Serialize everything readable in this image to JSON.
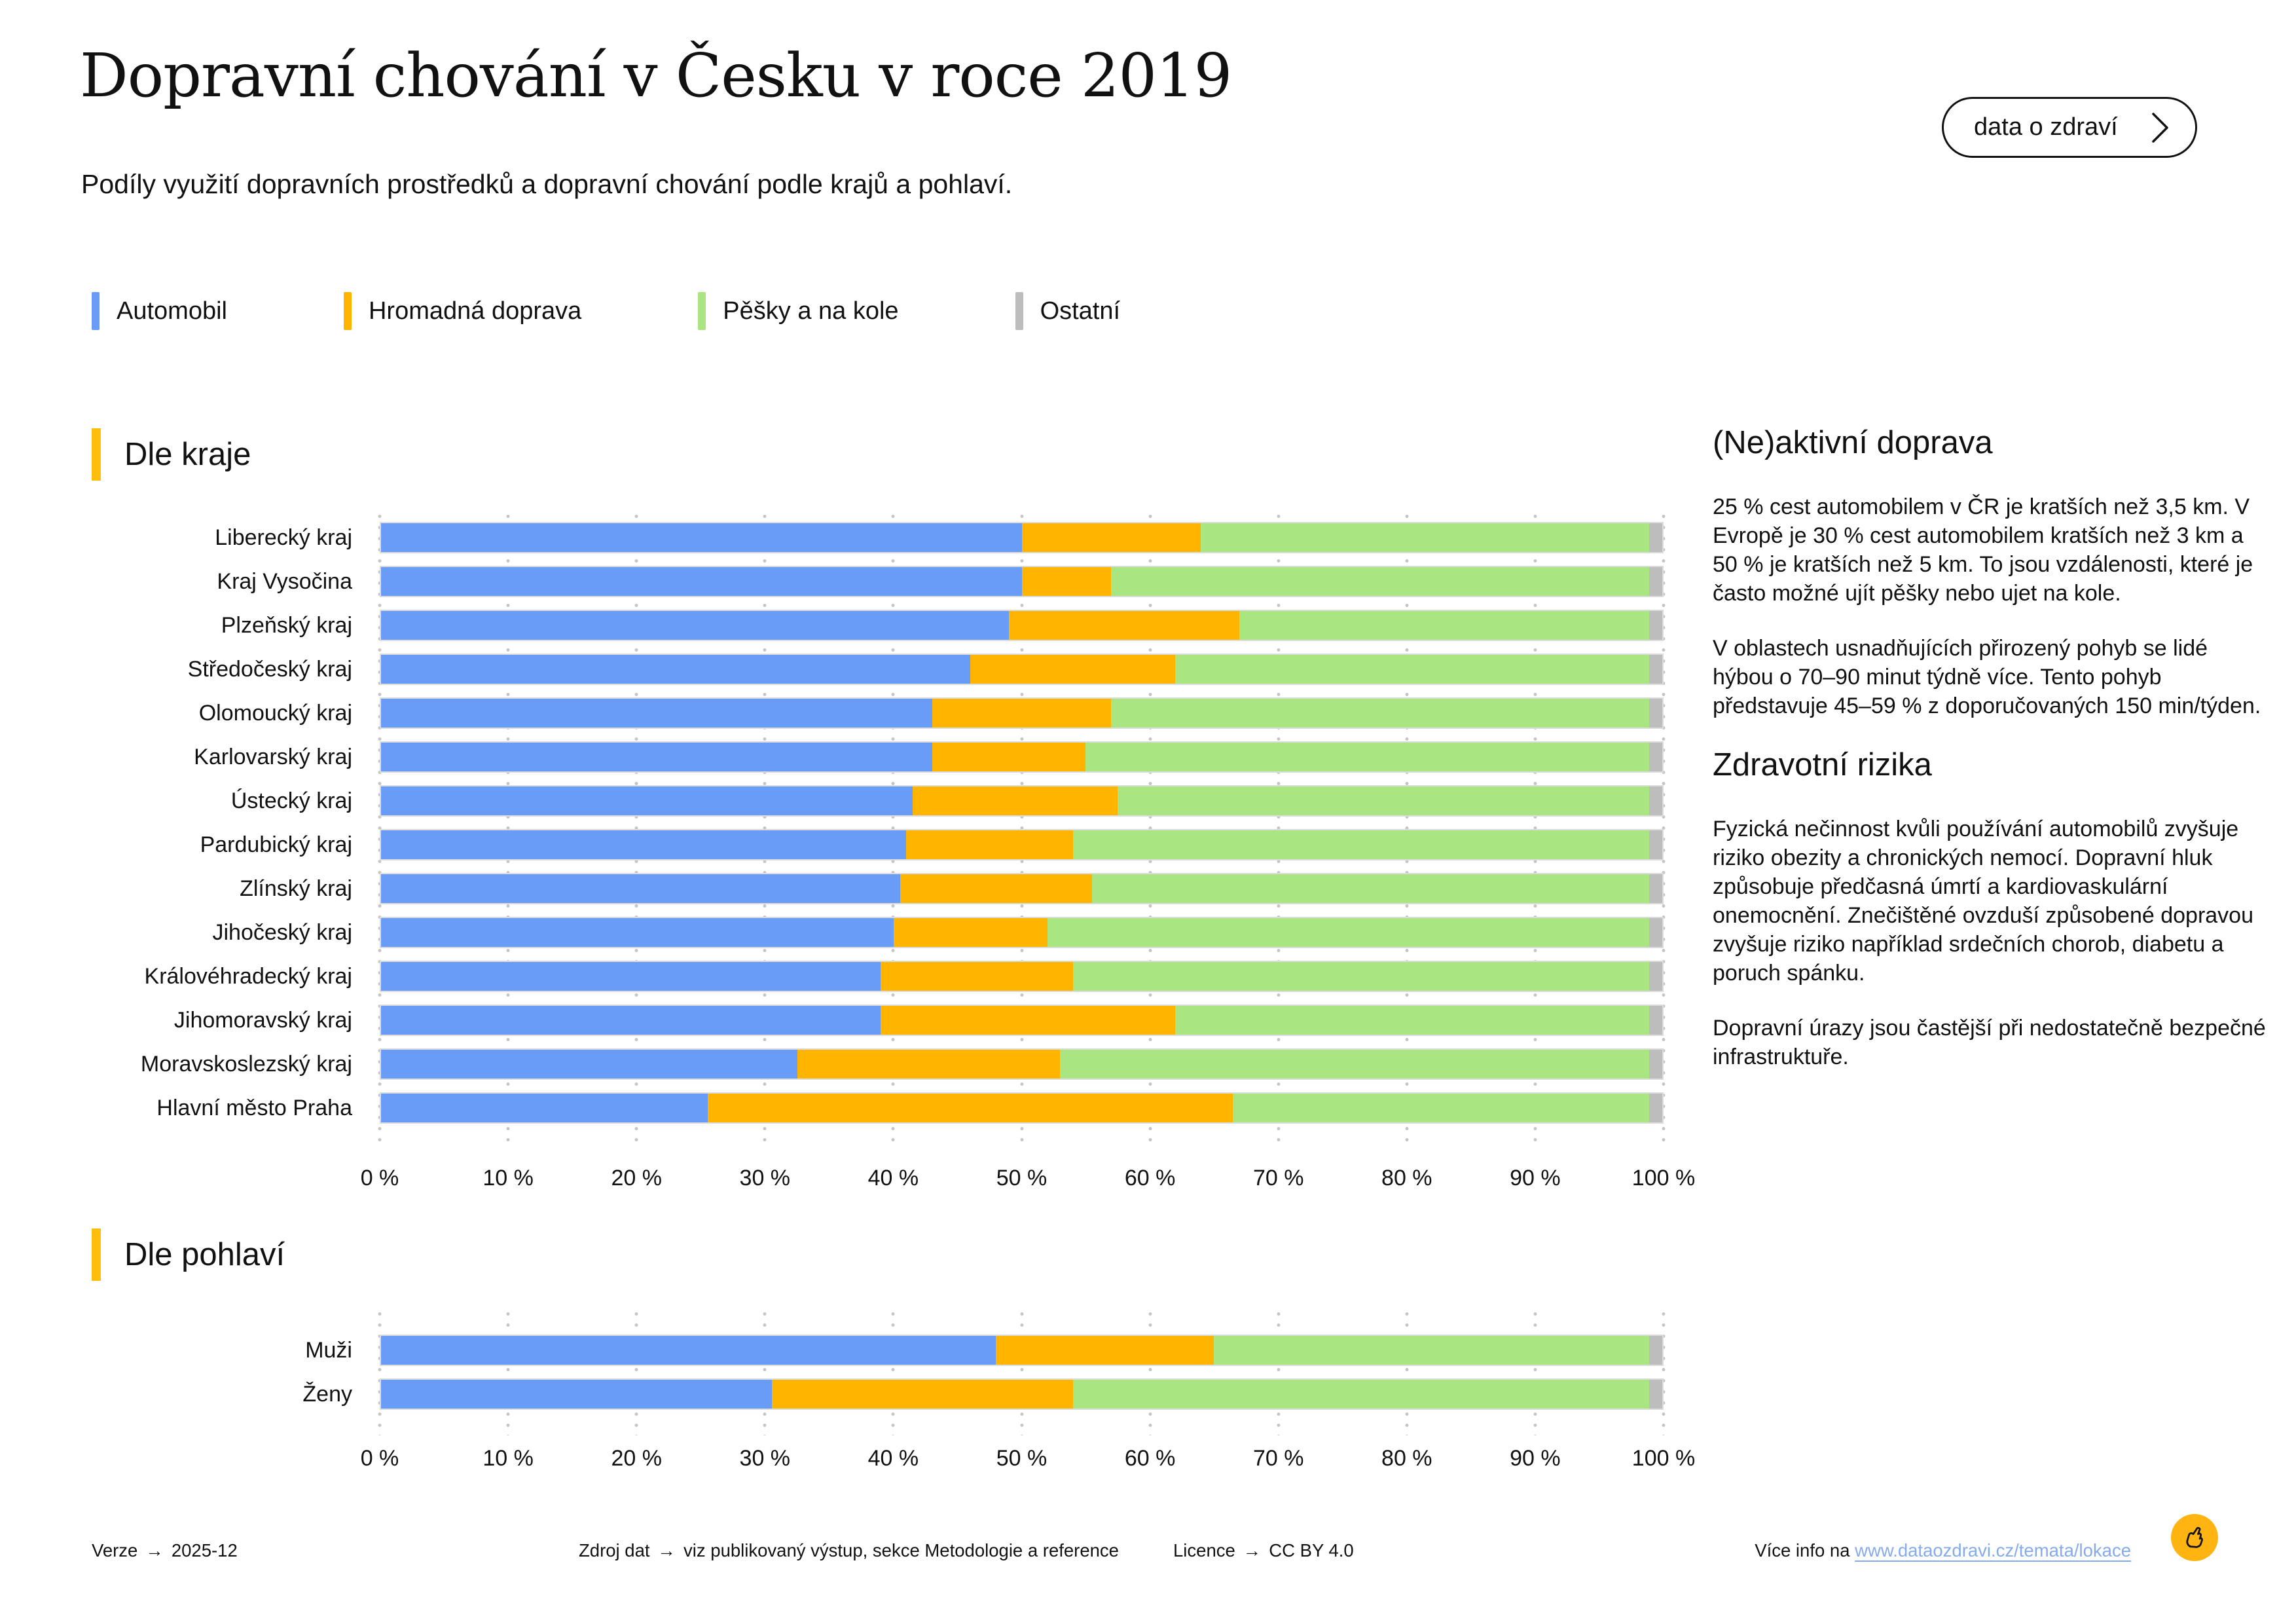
{
  "header": {
    "title": "Dopravní chování v Česku v roce 2019",
    "subtitle": "Podíly využití dopravních prostředků a dopravní chování podle krajů a pohlaví.",
    "cta_label": "data o zdraví"
  },
  "legend": [
    {
      "label": "Automobil",
      "color": "#699CF6"
    },
    {
      "label": "Hromadná doprava",
      "color": "#FFB400"
    },
    {
      "label": "Pěšky a na kole",
      "color": "#A9E581"
    },
    {
      "label": "Ostatní",
      "color": "#BDBDBD"
    }
  ],
  "chart_data": [
    {
      "type": "bar",
      "stacked": true,
      "orientation": "horizontal",
      "title": "Dle kraje",
      "unit": "%",
      "xlim": [
        0,
        100
      ],
      "grid": true,
      "x_ticks": [
        "0 %",
        "10 %",
        "20 %",
        "30 %",
        "40 %",
        "50 %",
        "60 %",
        "70 %",
        "80 %",
        "90 %",
        "100 %"
      ],
      "categories": [
        "Liberecký kraj",
        "Kraj Vysočina",
        "Plzeňský kraj",
        "Středočeský kraj",
        "Olomoucký kraj",
        "Karlovarský kraj",
        "Ústecký kraj",
        "Pardubický kraj",
        "Zlínský kraj",
        "Jihočeský kraj",
        "Královéhradecký kraj",
        "Jihomoravský kraj",
        "Moravskoslezský kraj",
        "Hlavní město Praha"
      ],
      "series": [
        {
          "name": "Automobil",
          "values": [
            50,
            50,
            49,
            46,
            43,
            43,
            41.5,
            41,
            40.5,
            40,
            39,
            39,
            32.5,
            25.5
          ]
        },
        {
          "name": "Hromadná doprava",
          "values": [
            14,
            7,
            18,
            16,
            14,
            12,
            16,
            13,
            15,
            12,
            15,
            23,
            20.5,
            41
          ]
        },
        {
          "name": "Pěšky a na kole",
          "values": [
            35,
            42,
            32,
            37,
            42,
            44,
            41.5,
            45,
            43.5,
            47,
            45,
            37,
            46,
            32.5
          ]
        },
        {
          "name": "Ostatní",
          "values": [
            1,
            1,
            1,
            1,
            1,
            1,
            1,
            1,
            1,
            1,
            1,
            1,
            1,
            1
          ]
        }
      ]
    },
    {
      "type": "bar",
      "stacked": true,
      "orientation": "horizontal",
      "title": "Dle pohlaví",
      "unit": "%",
      "xlim": [
        0,
        100
      ],
      "grid": true,
      "x_ticks": [
        "0 %",
        "10 %",
        "20 %",
        "30 %",
        "40 %",
        "50 %",
        "60 %",
        "70 %",
        "80 %",
        "90 %",
        "100 %"
      ],
      "categories": [
        "Muži",
        "Ženy"
      ],
      "series": [
        {
          "name": "Automobil",
          "values": [
            48,
            30.5
          ]
        },
        {
          "name": "Hromadná doprava",
          "values": [
            17,
            23.5
          ]
        },
        {
          "name": "Pěšky a na kole",
          "values": [
            34,
            45
          ]
        },
        {
          "name": "Ostatní",
          "values": [
            1,
            1
          ]
        }
      ]
    }
  ],
  "sidebar": {
    "sections": [
      {
        "heading": "(Ne)aktivní doprava",
        "paragraphs": [
          "25 % cest automobilem v ČR je kratších než 3,5 km. V Evropě je 30 % cest automobilem kratších než 3 km a 50 % je kratších než 5 km. To jsou vzdálenosti, které je často možné ujít pěšky nebo ujet na kole.",
          "V oblastech usnadňujících přirozený pohyb se lidé hýbou o 70–90 minut týdně více. Tento pohyb představuje 45–59 % z doporučovaných 150 min/týden."
        ]
      },
      {
        "heading": "Zdravotní rizika",
        "paragraphs": [
          "Fyzická nečinnost kvůli používání automobilů zvyšuje riziko obezity a chronických nemocí. Dopravní hluk způsobuje předčasná úmrtí a kardiovaskulární onemocnění. Znečištěné ovzduší způsobené dopravou zvyšuje riziko například srdečních chorob, diabetu a poruch spánku.",
          "Dopravní úrazy jsou častější při nedostatečně bezpečné infrastruktuře."
        ]
      }
    ]
  },
  "footer": {
    "arrow": "→",
    "items": [
      {
        "label": "Verze",
        "value": "2025-12"
      },
      {
        "label": "Zdroj dat",
        "value": "viz publikovaný výstup, sekce Metodologie a reference"
      },
      {
        "label": "Licence",
        "value": "CC BY 4.0"
      }
    ],
    "more_info": {
      "prefix": "Více info na",
      "link_text": "www.dataozdravi.cz/temata/lokace"
    }
  },
  "colors": {
    "accent_yellow": "#FFBD0D",
    "logo_yellow": "#FFB411",
    "link_blue": "#85ABEE",
    "gridline_gray": "#C5C5C5",
    "text": "#111111"
  }
}
